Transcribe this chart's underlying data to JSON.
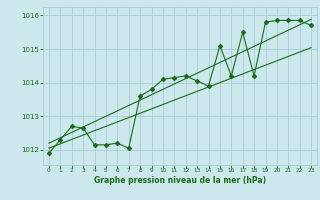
{
  "x_hours": [
    0,
    1,
    2,
    3,
    4,
    5,
    6,
    7,
    8,
    9,
    10,
    11,
    12,
    13,
    14,
    15,
    16,
    17,
    18,
    19,
    20,
    21,
    22,
    23
  ],
  "y_main": [
    1011.9,
    1012.3,
    1012.7,
    1012.65,
    1012.15,
    1012.15,
    1012.2,
    1012.05,
    1013.6,
    1013.8,
    1014.1,
    1014.15,
    1014.2,
    1014.05,
    1013.9,
    1015.1,
    1014.2,
    1015.5,
    1014.2,
    1015.8,
    1015.85,
    1015.85,
    1015.85,
    1015.7
  ],
  "y_line1": [
    1012.05,
    1012.18,
    1012.31,
    1012.44,
    1012.57,
    1012.7,
    1012.83,
    1012.96,
    1013.09,
    1013.22,
    1013.35,
    1013.48,
    1013.61,
    1013.74,
    1013.87,
    1014.0,
    1014.13,
    1014.26,
    1014.39,
    1014.52,
    1014.65,
    1014.78,
    1014.91,
    1015.04
  ],
  "y_line2": [
    1012.2,
    1012.36,
    1012.52,
    1012.68,
    1012.84,
    1013.0,
    1013.16,
    1013.32,
    1013.48,
    1013.64,
    1013.8,
    1013.96,
    1014.12,
    1014.28,
    1014.44,
    1014.6,
    1014.76,
    1014.92,
    1015.08,
    1015.24,
    1015.4,
    1015.56,
    1015.72,
    1015.88
  ],
  "bg_color": "#cce8ed",
  "grid_color": "#aacdd6",
  "line_color": "#1a6b1a",
  "xlabel": "Graphe pression niveau de la mer (hPa)",
  "ylim": [
    1011.55,
    1016.25
  ],
  "xlim": [
    -0.5,
    23.5
  ],
  "yticks": [
    1012,
    1013,
    1014,
    1015,
    1016
  ],
  "xtick_labels": [
    "0",
    "1",
    "2",
    "3",
    "4",
    "5",
    "6",
    "7",
    "8",
    "9",
    "10",
    "11",
    "12",
    "13",
    "14",
    "15",
    "16",
    "17",
    "18",
    "19",
    "20",
    "21",
    "22",
    "23"
  ]
}
